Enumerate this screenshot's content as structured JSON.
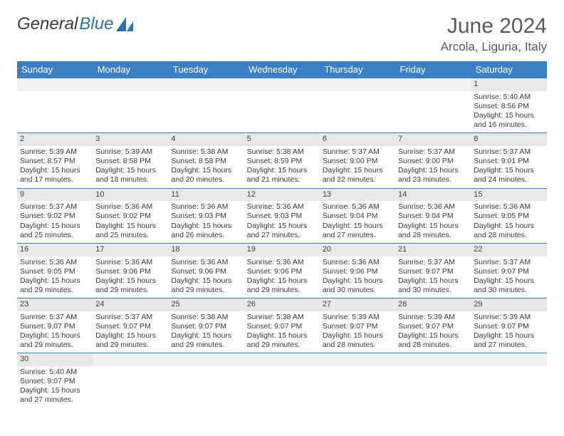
{
  "logo": {
    "text1": "General",
    "text2": "Blue"
  },
  "title": "June 2024",
  "location": "Arcola, Liguria, Italy",
  "colors": {
    "header_bg": "#3b7fc4",
    "header_text": "#ffffff",
    "daynum_bg": "#e8e8e8",
    "border": "#3b7fc4",
    "text": "#3b3b3b",
    "title_color": "#5a5a5a"
  },
  "columns": [
    "Sunday",
    "Monday",
    "Tuesday",
    "Wednesday",
    "Thursday",
    "Friday",
    "Saturday"
  ],
  "weeks": [
    [
      {
        "n": "",
        "lines": []
      },
      {
        "n": "",
        "lines": []
      },
      {
        "n": "",
        "lines": []
      },
      {
        "n": "",
        "lines": []
      },
      {
        "n": "",
        "lines": []
      },
      {
        "n": "",
        "lines": []
      },
      {
        "n": "1",
        "lines": [
          "Sunrise: 5:40 AM",
          "Sunset: 8:56 PM",
          "Daylight: 15 hours and 16 minutes."
        ]
      }
    ],
    [
      {
        "n": "2",
        "lines": [
          "Sunrise: 5:39 AM",
          "Sunset: 8:57 PM",
          "Daylight: 15 hours and 17 minutes."
        ]
      },
      {
        "n": "3",
        "lines": [
          "Sunrise: 5:39 AM",
          "Sunset: 8:58 PM",
          "Daylight: 15 hours and 18 minutes."
        ]
      },
      {
        "n": "4",
        "lines": [
          "Sunrise: 5:38 AM",
          "Sunset: 8:58 PM",
          "Daylight: 15 hours and 20 minutes."
        ]
      },
      {
        "n": "5",
        "lines": [
          "Sunrise: 5:38 AM",
          "Sunset: 8:59 PM",
          "Daylight: 15 hours and 21 minutes."
        ]
      },
      {
        "n": "6",
        "lines": [
          "Sunrise: 5:37 AM",
          "Sunset: 9:00 PM",
          "Daylight: 15 hours and 22 minutes."
        ]
      },
      {
        "n": "7",
        "lines": [
          "Sunrise: 5:37 AM",
          "Sunset: 9:00 PM",
          "Daylight: 15 hours and 23 minutes."
        ]
      },
      {
        "n": "8",
        "lines": [
          "Sunrise: 5:37 AM",
          "Sunset: 9:01 PM",
          "Daylight: 15 hours and 24 minutes."
        ]
      }
    ],
    [
      {
        "n": "9",
        "lines": [
          "Sunrise: 5:37 AM",
          "Sunset: 9:02 PM",
          "Daylight: 15 hours and 25 minutes."
        ]
      },
      {
        "n": "10",
        "lines": [
          "Sunrise: 5:36 AM",
          "Sunset: 9:02 PM",
          "Daylight: 15 hours and 25 minutes."
        ]
      },
      {
        "n": "11",
        "lines": [
          "Sunrise: 5:36 AM",
          "Sunset: 9:03 PM",
          "Daylight: 15 hours and 26 minutes."
        ]
      },
      {
        "n": "12",
        "lines": [
          "Sunrise: 5:36 AM",
          "Sunset: 9:03 PM",
          "Daylight: 15 hours and 27 minutes."
        ]
      },
      {
        "n": "13",
        "lines": [
          "Sunrise: 5:36 AM",
          "Sunset: 9:04 PM",
          "Daylight: 15 hours and 27 minutes."
        ]
      },
      {
        "n": "14",
        "lines": [
          "Sunrise: 5:36 AM",
          "Sunset: 9:04 PM",
          "Daylight: 15 hours and 28 minutes."
        ]
      },
      {
        "n": "15",
        "lines": [
          "Sunrise: 5:36 AM",
          "Sunset: 9:05 PM",
          "Daylight: 15 hours and 28 minutes."
        ]
      }
    ],
    [
      {
        "n": "16",
        "lines": [
          "Sunrise: 5:36 AM",
          "Sunset: 9:05 PM",
          "Daylight: 15 hours and 29 minutes."
        ]
      },
      {
        "n": "17",
        "lines": [
          "Sunrise: 5:36 AM",
          "Sunset: 9:06 PM",
          "Daylight: 15 hours and 29 minutes."
        ]
      },
      {
        "n": "18",
        "lines": [
          "Sunrise: 5:36 AM",
          "Sunset: 9:06 PM",
          "Daylight: 15 hours and 29 minutes."
        ]
      },
      {
        "n": "19",
        "lines": [
          "Sunrise: 5:36 AM",
          "Sunset: 9:06 PM",
          "Daylight: 15 hours and 29 minutes."
        ]
      },
      {
        "n": "20",
        "lines": [
          "Sunrise: 5:36 AM",
          "Sunset: 9:06 PM",
          "Daylight: 15 hours and 30 minutes."
        ]
      },
      {
        "n": "21",
        "lines": [
          "Sunrise: 5:37 AM",
          "Sunset: 9:07 PM",
          "Daylight: 15 hours and 30 minutes."
        ]
      },
      {
        "n": "22",
        "lines": [
          "Sunrise: 5:37 AM",
          "Sunset: 9:07 PM",
          "Daylight: 15 hours and 30 minutes."
        ]
      }
    ],
    [
      {
        "n": "23",
        "lines": [
          "Sunrise: 5:37 AM",
          "Sunset: 9:07 PM",
          "Daylight: 15 hours and 29 minutes."
        ]
      },
      {
        "n": "24",
        "lines": [
          "Sunrise: 5:37 AM",
          "Sunset: 9:07 PM",
          "Daylight: 15 hours and 29 minutes."
        ]
      },
      {
        "n": "25",
        "lines": [
          "Sunrise: 5:38 AM",
          "Sunset: 9:07 PM",
          "Daylight: 15 hours and 29 minutes."
        ]
      },
      {
        "n": "26",
        "lines": [
          "Sunrise: 5:38 AM",
          "Sunset: 9:07 PM",
          "Daylight: 15 hours and 29 minutes."
        ]
      },
      {
        "n": "27",
        "lines": [
          "Sunrise: 5:39 AM",
          "Sunset: 9:07 PM",
          "Daylight: 15 hours and 28 minutes."
        ]
      },
      {
        "n": "28",
        "lines": [
          "Sunrise: 5:39 AM",
          "Sunset: 9:07 PM",
          "Daylight: 15 hours and 28 minutes."
        ]
      },
      {
        "n": "29",
        "lines": [
          "Sunrise: 5:39 AM",
          "Sunset: 9:07 PM",
          "Daylight: 15 hours and 27 minutes."
        ]
      }
    ],
    [
      {
        "n": "30",
        "lines": [
          "Sunrise: 5:40 AM",
          "Sunset: 9:07 PM",
          "Daylight: 15 hours and 27 minutes."
        ]
      },
      {
        "n": "",
        "lines": []
      },
      {
        "n": "",
        "lines": []
      },
      {
        "n": "",
        "lines": []
      },
      {
        "n": "",
        "lines": []
      },
      {
        "n": "",
        "lines": []
      },
      {
        "n": "",
        "lines": []
      }
    ]
  ]
}
